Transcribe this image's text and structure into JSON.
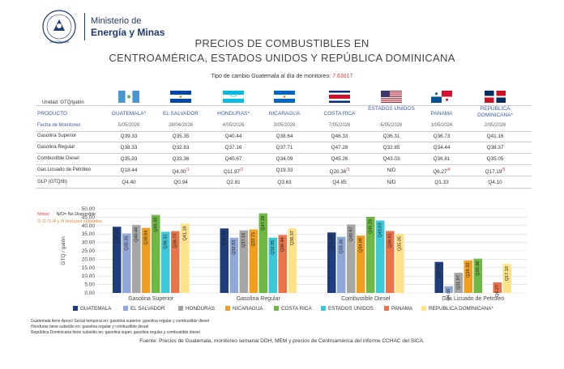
{
  "header": {
    "logo_lines": [
      "Ministerio de",
      "Energía y Minas"
    ],
    "seal_text": "GUATEMALA",
    "title_line1": "PRECIOS DE COMBUSTIBLES EN",
    "title_line2": "CENTROAMÉRICA, ESTADOS UNIDOS Y REPÚBLICA DOMINICANA",
    "exchange_label": "Tipo de cambio Guatemala al día de monitoreo:",
    "exchange_value": "7.63017"
  },
  "table": {
    "unit_label": "Unidad: GTQ/galón",
    "product_header": "PRODUCTO",
    "date_header": "Fecha de Monitoreo",
    "countries": [
      {
        "name": "GUATEMALA*",
        "date": "5/05/2026",
        "flag": "guatemala-flag"
      },
      {
        "name": "EL SALVADOR",
        "date": "28/04/2026",
        "flag": "el-salvador-flag"
      },
      {
        "name": "HONDURAS*",
        "date": "4/05/2026",
        "flag": "honduras-flag"
      },
      {
        "name": "NICARAGUA",
        "date": "3/05/2026",
        "flag": "nicaragua-flag"
      },
      {
        "name": "COSTA RICA",
        "date": "7/05/2026",
        "flag": "costa-rica-flag"
      },
      {
        "name": "ESTADOS UNIDOS",
        "date": "5/05/2026",
        "flag": "usa-flag"
      },
      {
        "name": "PANAMA",
        "date": "1/05/2026",
        "flag": "panama-flag"
      },
      {
        "name": "REPUBLICA DOMINICANA*",
        "date": "2/05/2026",
        "flag": "dominican-republic-flag"
      }
    ],
    "rows": [
      {
        "label": "Gasolina Superior",
        "values": [
          "Q39.33",
          "Q35.35",
          "Q40.44",
          "Q38.64",
          "Q46.33",
          "Q36.31",
          "Q36.73",
          "Q41.16"
        ],
        "marks": [
          "",
          "",
          "",
          "",
          "",
          "",
          "",
          ""
        ]
      },
      {
        "label": "Gasolina Regular",
        "values": [
          "Q38.33",
          "Q32.83",
          "Q37.16",
          "Q37.71",
          "Q47.28",
          "Q32.85",
          "Q34.44",
          "Q38.37"
        ],
        "marks": [
          "",
          "",
          "",
          "",
          "",
          "",
          "",
          ""
        ]
      },
      {
        "label": "Combustible Diesel",
        "values": [
          "Q35.93",
          "Q33.36",
          "Q40.67",
          "Q34.09",
          "Q45.26",
          "Q43.03",
          "Q36.81",
          "Q35.05"
        ],
        "marks": [
          "",
          "",
          "",
          "",
          "",
          "",
          "",
          ""
        ]
      },
      {
        "label": "Gas Licuado de Petróleo",
        "values": [
          "Q18.44",
          "Q4.00",
          "Q11.97",
          "Q19.33",
          "Q20.36",
          "N/D",
          "Q6.27",
          "Q17.19"
        ],
        "marks": [
          "",
          "/1",
          "/2",
          "",
          "/3",
          "",
          "/4",
          "/5"
        ]
      },
      {
        "label": "GLP (GTQ/lb)",
        "values": [
          "Q4.40",
          "Q0.94",
          "Q2.81",
          "Q3.63",
          "Q4.85",
          "N/D",
          "Q1.33",
          "Q4.10"
        ],
        "marks": [
          "",
          "",
          "",
          "",
          "",
          "",
          "",
          ""
        ]
      }
    ],
    "notes_label": "Notas:",
    "notes_text": "N/D= No Disponible",
    "subsidy_note": "/1 /2 /3 /4 y /5 Incluyen subsidios."
  },
  "chart_data": {
    "type": "bar",
    "ylabel": "GTQ / galón",
    "ylim": [
      0,
      50
    ],
    "yticks": [
      "0.00",
      "5.00",
      "10.00",
      "15.00",
      "20.00",
      "25.00",
      "30.00",
      "35.00",
      "40.00",
      "45.00",
      "50.00"
    ],
    "categories": [
      "Gasolina Superior",
      "Gasolina Regular",
      "Combustible Diesel",
      "Gas Licuado de Petróleo"
    ],
    "grid": true,
    "legend_position": "bottom",
    "series": [
      {
        "name": "GUATEMALA",
        "color": "#1f3d7a",
        "values": [
          39.33,
          38.33,
          35.93,
          18.44
        ],
        "labels": [
          "Q39.33",
          "Q38.33",
          "Q35.93",
          "Q18.44"
        ]
      },
      {
        "name": "EL SALVADOR",
        "color": "#8fa8d8",
        "values": [
          35.35,
          32.83,
          33.36,
          4.0
        ],
        "labels": [
          "Q35.35",
          "Q32.83",
          "Q33.36",
          "Q4.00"
        ]
      },
      {
        "name": "HONDURAS",
        "color": "#a6a6a6",
        "values": [
          40.44,
          37.16,
          40.67,
          11.97
        ],
        "labels": [
          "Q40.44",
          "Q37.16",
          "Q40.67",
          "Q11.97"
        ]
      },
      {
        "name": "NICARAGUA",
        "color": "#f0a020",
        "values": [
          38.64,
          37.71,
          34.09,
          19.33
        ],
        "labels": [
          "Q38.64",
          "Q37.71",
          "Q34.09",
          "Q19.33"
        ]
      },
      {
        "name": "COSTA RICA",
        "color": "#70b844",
        "values": [
          46.33,
          47.28,
          45.26,
          20.36
        ],
        "labels": [
          "Q46.33",
          "Q47.28",
          "Q45.26",
          "Q20.36"
        ]
      },
      {
        "name": "ESTADOS UNIDOS",
        "color": "#3cc8d8",
        "values": [
          36.31,
          32.85,
          43.03,
          0
        ],
        "labels": [
          "Q36.31",
          "Q32.85",
          "Q43.03",
          ""
        ]
      },
      {
        "name": "PANAMA",
        "color": "#e8744a",
        "values": [
          36.73,
          34.44,
          36.81,
          6.27
        ],
        "labels": [
          "Q36.73",
          "Q34.44",
          "Q36.81",
          "Q6.27"
        ]
      },
      {
        "name": "REPUBLICA DOMINICANA*",
        "color": "#fde28a",
        "values": [
          41.16,
          38.37,
          35.05,
          17.19
        ],
        "labels": [
          "Q41.16",
          "Q38.37",
          "Q35.05",
          "Q17.19"
        ]
      }
    ]
  },
  "footnotes": [
    "Guatemala tiene Apoyo Social temporal en: gasolina superior, gasolina regular y combustible diesel",
    "Honduras tiene subsidio en: gasolina regular y combustible diesel",
    "República Dominicana tiene subsidio en: gasolina super, gasolina regular y combustible diesel"
  ],
  "source": "Fuente: Precios de Guatemala, monitoreo semanal DGH, MEM y precios de Centroamérica del informe CCHAC del SICA."
}
